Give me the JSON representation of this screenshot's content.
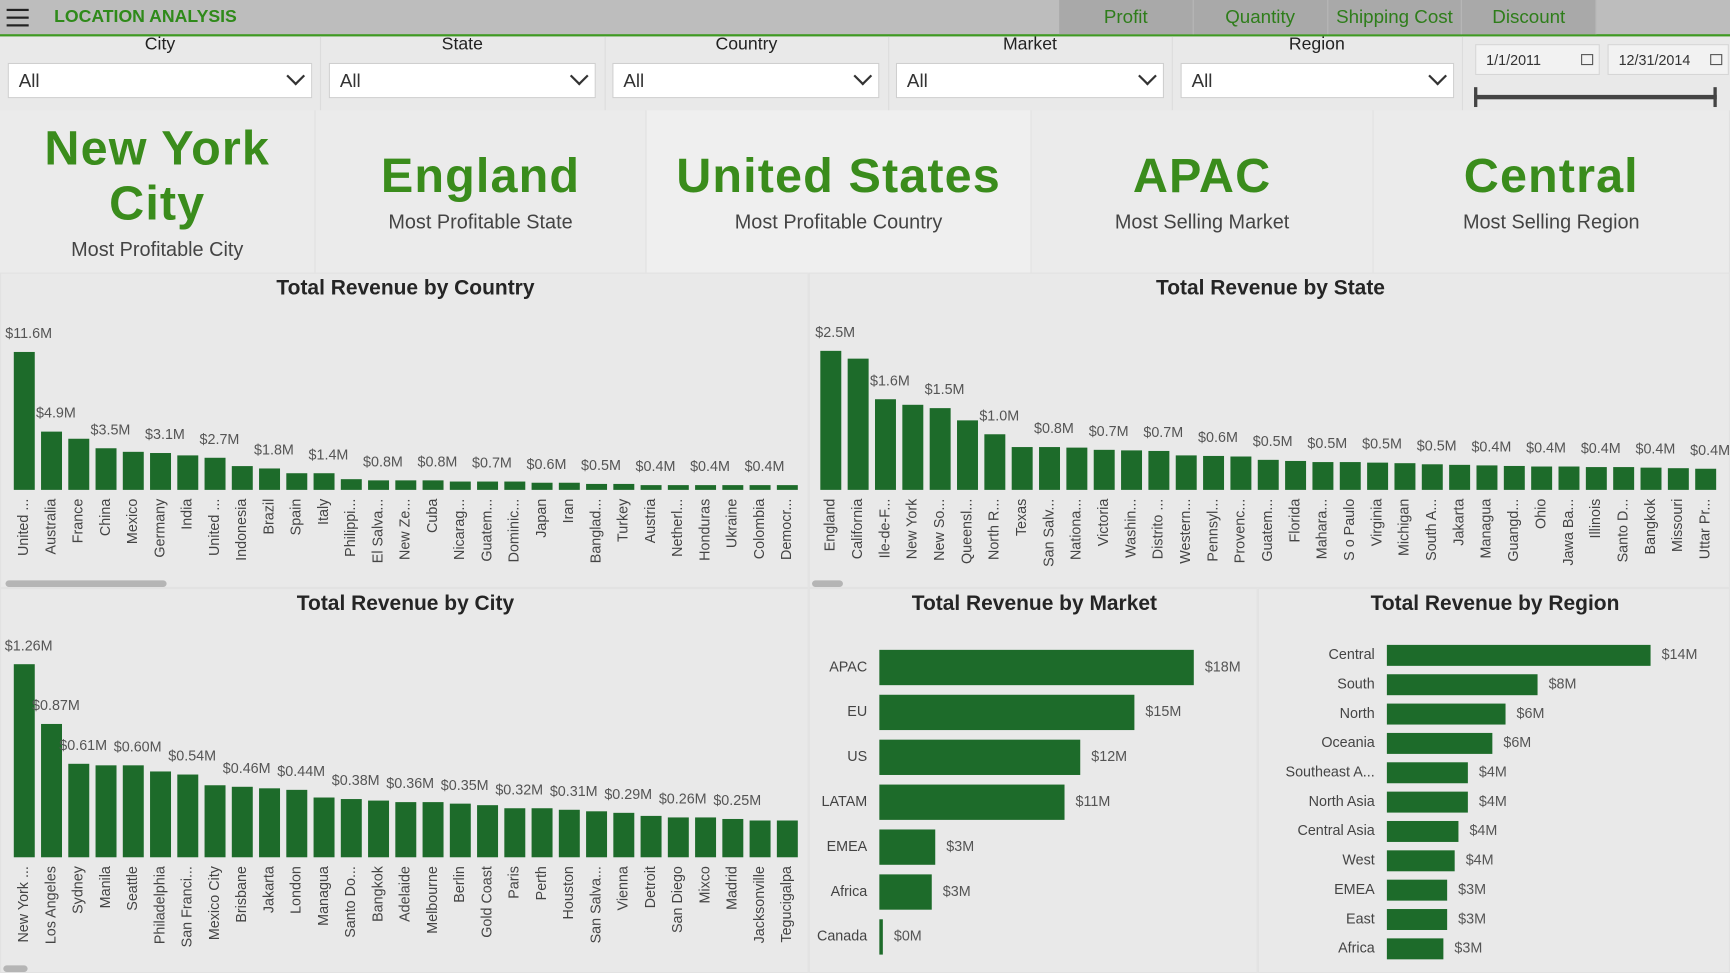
{
  "header": {
    "title": "LOCATION ANALYSIS",
    "nav": [
      "Profit",
      "Quantity",
      "Shipping Cost",
      "Discount"
    ]
  },
  "filters": [
    {
      "label": "City",
      "value": "All"
    },
    {
      "label": "State",
      "value": "All"
    },
    {
      "label": "Country",
      "value": "All"
    },
    {
      "label": "Market",
      "value": "All"
    },
    {
      "label": "Region",
      "value": "All"
    }
  ],
  "date_range": {
    "start": "1/1/2011",
    "end": "12/31/2014"
  },
  "kpis": [
    {
      "value": "New York City",
      "label": "Most Profitable City"
    },
    {
      "value": "England",
      "label": "Most Profitable State"
    },
    {
      "value": "United States",
      "label": "Most Profitable Country"
    },
    {
      "value": "APAC",
      "label": "Most Selling Market"
    },
    {
      "value": "Central",
      "label": "Most Selling Region"
    }
  ],
  "chart_data": [
    {
      "type": "bar",
      "title": "Total Revenue by Country",
      "color": "#1d6b2a",
      "categories": [
        "United ...",
        "Australia",
        "France",
        "China",
        "Mexico",
        "Germany",
        "India",
        "United ...",
        "Indonesia",
        "Brazil",
        "Spain",
        "Italy",
        "Philippi...",
        "El Salva...",
        "New Ze...",
        "Cuba",
        "Nicarag...",
        "Guatem...",
        "Dominic...",
        "Japan",
        "Iran",
        "Banglad...",
        "Turkey",
        "Austria",
        "Netherl...",
        "Honduras",
        "Ukraine",
        "Colombia",
        "Democr..."
      ],
      "values": [
        11.6,
        4.9,
        4.3,
        3.5,
        3.2,
        3.1,
        2.9,
        2.7,
        2.0,
        1.8,
        1.4,
        1.4,
        0.9,
        0.8,
        0.8,
        0.8,
        0.7,
        0.7,
        0.7,
        0.6,
        0.6,
        0.5,
        0.5,
        0.4,
        0.4,
        0.4,
        0.4,
        0.4,
        0.4
      ],
      "value_labels": [
        "$11.6M",
        "$4.9M",
        null,
        "$3.5M",
        null,
        "$3.1M",
        null,
        "$2.7M",
        null,
        "$1.8M",
        null,
        "$1.4M",
        null,
        "$0.8M",
        null,
        "$0.8M",
        null,
        "$0.7M",
        null,
        "$0.6M",
        null,
        "$0.5M",
        null,
        "$0.4M",
        null,
        "$0.4M",
        null,
        "$0.4M",
        null
      ]
    },
    {
      "type": "bar",
      "title": "Total Revenue by State",
      "color": "#1d6b2a",
      "categories": [
        "England",
        "California",
        "Ile-de-F...",
        "New York",
        "New So...",
        "Queensl...",
        "North R...",
        "Texas",
        "San Salv...",
        "Nationa...",
        "Victoria",
        "Washin...",
        "Distrito ...",
        "Western...",
        "Pennsyl...",
        "Provenc...",
        "Guatem...",
        "Florida",
        "Mahara...",
        "S o Paulo",
        "Virginia",
        "Michigan",
        "South A...",
        "Jakarta",
        "Managua",
        "Guangd...",
        "Ohio",
        "Jawa Ba...",
        "Illinois",
        "Santo D...",
        "Bangkok",
        "Missouri",
        "Uttar Pr..."
      ],
      "values": [
        2.5,
        2.36,
        1.63,
        1.53,
        1.47,
        1.25,
        1.0,
        0.77,
        0.77,
        0.76,
        0.72,
        0.71,
        0.7,
        0.62,
        0.61,
        0.6,
        0.54,
        0.52,
        0.5,
        0.5,
        0.49,
        0.48,
        0.46,
        0.45,
        0.44,
        0.43,
        0.42,
        0.42,
        0.41,
        0.41,
        0.4,
        0.39,
        0.38
      ],
      "value_labels": [
        "$2.5M",
        null,
        "$1.6M",
        null,
        "$1.5M",
        null,
        "$1.0M",
        null,
        "$0.8M",
        null,
        "$0.7M",
        null,
        "$0.7M",
        null,
        "$0.6M",
        null,
        "$0.5M",
        null,
        "$0.5M",
        null,
        "$0.5M",
        null,
        "$0.5M",
        null,
        "$0.4M",
        null,
        "$0.4M",
        null,
        "$0.4M",
        null,
        "$0.4M",
        null,
        "$0.4M"
      ]
    },
    {
      "type": "bar",
      "title": "Total Revenue by City",
      "color": "#1d6b2a",
      "categories": [
        "New York ...",
        "Los Angeles",
        "Sydney",
        "Manila",
        "Seattle",
        "Philadelphia",
        "San Franci...",
        "Mexico City",
        "Brisbane",
        "Jakarta",
        "London",
        "Managua",
        "Santo Do...",
        "Bangkok",
        "Adelaide",
        "Melbourne",
        "Berlin",
        "Gold Coast",
        "Paris",
        "Perth",
        "Houston",
        "San Salva...",
        "Vienna",
        "Detroit",
        "San Diego",
        "Mixco",
        "Madrid",
        "Jacksonville",
        "Tegucigalpa"
      ],
      "values": [
        1.26,
        0.87,
        0.61,
        0.6,
        0.6,
        0.56,
        0.54,
        0.47,
        0.46,
        0.45,
        0.44,
        0.39,
        0.38,
        0.37,
        0.36,
        0.36,
        0.35,
        0.34,
        0.32,
        0.32,
        0.31,
        0.3,
        0.29,
        0.27,
        0.26,
        0.26,
        0.25,
        0.24,
        0.24
      ],
      "value_labels": [
        "$1.26M",
        "$0.87M",
        "$0.61M",
        null,
        "$0.60M",
        null,
        "$0.54M",
        null,
        "$0.46M",
        null,
        "$0.44M",
        null,
        "$0.38M",
        null,
        "$0.36M",
        null,
        "$0.35M",
        null,
        "$0.32M",
        null,
        "$0.31M",
        null,
        "$0.29M",
        null,
        "$0.26M",
        null,
        "$0.25M",
        null,
        null
      ]
    },
    {
      "type": "bar",
      "orientation": "horizontal",
      "title": "Total Revenue by Market",
      "color": "#1d6b2a",
      "categories": [
        "APAC",
        "EU",
        "US",
        "LATAM",
        "EMEA",
        "Africa",
        "Canada"
      ],
      "values": [
        18,
        14.6,
        11.5,
        10.6,
        3.2,
        3.0,
        0.2
      ],
      "value_labels": [
        "$18M",
        "$15M",
        "$12M",
        "$11M",
        "$3M",
        "$3M",
        "$0M"
      ]
    },
    {
      "type": "bar",
      "orientation": "horizontal",
      "title": "Total Revenue by Region",
      "color": "#1d6b2a",
      "categories": [
        "Central",
        "South",
        "North",
        "Oceania",
        "Southeast A...",
        "North Asia",
        "Central Asia",
        "West",
        "EMEA",
        "East",
        "Africa"
      ],
      "values": [
        14,
        8.0,
        6.3,
        5.6,
        4.3,
        4.3,
        3.8,
        3.6,
        3.2,
        3.2,
        3.0
      ],
      "value_labels": [
        "$14M",
        "$8M",
        "$6M",
        "$6M",
        "$4M",
        "$4M",
        "$4M",
        "$4M",
        "$3M",
        "$3M",
        "$3M"
      ]
    }
  ]
}
